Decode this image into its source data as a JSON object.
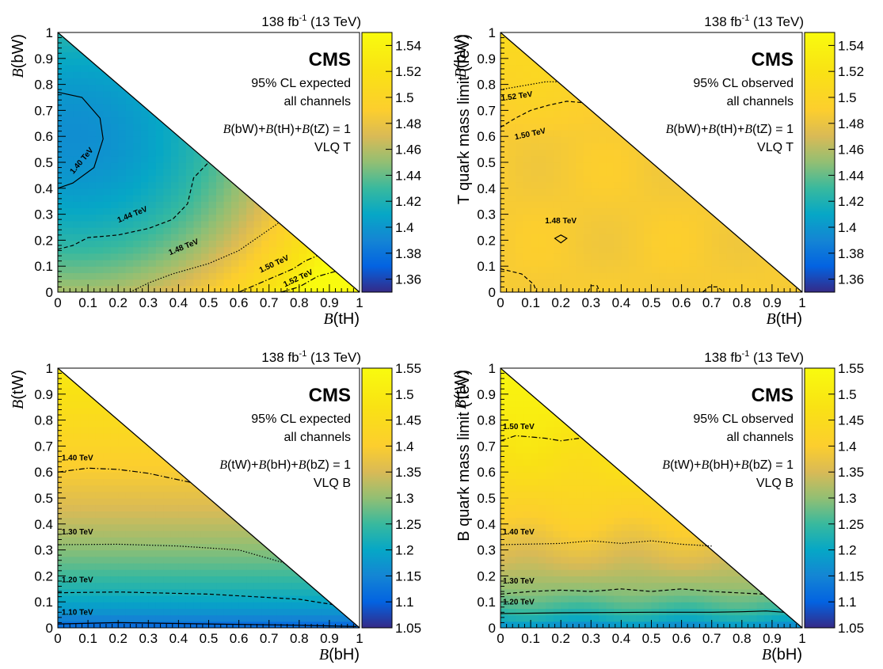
{
  "chart_data": [
    {
      "type": "heatmap",
      "id": "tl",
      "lumi": "138 fb",
      "lumi_sup": "-1",
      "energy": "(13 TeV)",
      "experiment": "CMS",
      "label_line1": "95% CL expected",
      "label_line2": "all channels",
      "constraint": "B(bW)+B(tH)+B(tZ) = 1",
      "model": "VLQ T",
      "xlabel": "B(tH)",
      "ylabel": "B(bW)",
      "zlabel": "T quark mass limit (TeV)",
      "xlim": [
        0,
        1
      ],
      "ylim": [
        0,
        1
      ],
      "zlim": [
        1.35,
        1.55
      ],
      "xticks": [
        "0",
        "0.1",
        "0.2",
        "0.3",
        "0.4",
        "0.5",
        "0.6",
        "0.7",
        "0.8",
        "0.9",
        "1"
      ],
      "yticks": [
        "0",
        "0.1",
        "0.2",
        "0.3",
        "0.4",
        "0.5",
        "0.6",
        "0.7",
        "0.8",
        "0.9",
        "1"
      ],
      "zticks": [
        "1.36",
        "1.38",
        "1.4",
        "1.42",
        "1.44",
        "1.46",
        "1.48",
        "1.5",
        "1.52",
        "1.54"
      ],
      "zvalues": [
        1.36,
        1.38,
        1.4,
        1.42,
        1.44,
        1.46,
        1.48,
        1.5,
        1.52,
        1.54
      ],
      "surface": {
        "center": [
          0.06,
          0.6
        ],
        "v0": 1.395,
        "k": 0.155
      },
      "contours": [
        {
          "label": "1.40 TeV",
          "style": "solid",
          "points": [
            [
              0,
              0.77
            ],
            [
              0.08,
              0.75
            ],
            [
              0.14,
              0.67
            ],
            [
              0.15,
              0.59
            ],
            [
              0.12,
              0.48
            ],
            [
              0.05,
              0.42
            ],
            [
              0,
              0.4
            ]
          ],
          "label_at": [
            0.085,
            0.5
          ],
          "label_angle": -50
        },
        {
          "label": "1.44 TeV",
          "style": "dashed",
          "points": [
            [
              0,
              0.165
            ],
            [
              0.05,
              0.18
            ],
            [
              0.1,
              0.21
            ],
            [
              0.15,
              0.215
            ],
            [
              0.2,
              0.22
            ],
            [
              0.3,
              0.245
            ],
            [
              0.38,
              0.28
            ],
            [
              0.43,
              0.34
            ],
            [
              0.45,
              0.44
            ],
            [
              0.5,
              0.5
            ]
          ],
          "label_at": [
            0.25,
            0.29
          ],
          "label_angle": -22
        },
        {
          "label": "1.48 TeV",
          "style": "dotted",
          "points": [
            [
              0.24,
              0
            ],
            [
              0.3,
              0.035
            ],
            [
              0.38,
              0.07
            ],
            [
              0.5,
              0.11
            ],
            [
              0.6,
              0.16
            ],
            [
              0.73,
              0.265
            ]
          ],
          "label_at": [
            0.42,
            0.165
          ],
          "label_angle": -22
        },
        {
          "label": "1.50 TeV",
          "style": "dashdot",
          "points": [
            [
              0.6,
              0
            ],
            [
              0.7,
              0.05
            ],
            [
              0.78,
              0.09
            ],
            [
              0.82,
              0.12
            ],
            [
              0.86,
              0.14
            ]
          ],
          "label_at": [
            0.72,
            0.1
          ],
          "label_angle": -25
        },
        {
          "label": "1.52 TeV",
          "style": "dashdot",
          "points": [
            [
              0.74,
              0
            ],
            [
              0.8,
              0.02
            ],
            [
              0.86,
              0.06
            ],
            [
              0.92,
              0.08
            ]
          ],
          "label_at": [
            0.8,
            0.045
          ],
          "label_angle": -25
        }
      ]
    },
    {
      "type": "heatmap",
      "id": "tr",
      "lumi": "138 fb",
      "lumi_sup": "-1",
      "energy": "(13 TeV)",
      "experiment": "CMS",
      "label_line1": "95% CL observed",
      "label_line2": "all channels",
      "constraint": "B(bW)+B(tH)+B(tZ) = 1",
      "model": "VLQ T",
      "xlabel": "B(tH)",
      "ylabel": "B(bW)",
      "zlabel": "T quark mass limit (TeV)",
      "xlim": [
        0,
        1
      ],
      "ylim": [
        0,
        1
      ],
      "zlim": [
        1.35,
        1.55
      ],
      "xticks": [
        "0",
        "0.1",
        "0.2",
        "0.3",
        "0.4",
        "0.5",
        "0.6",
        "0.7",
        "0.8",
        "0.9",
        "1"
      ],
      "yticks": [
        "0",
        "0.1",
        "0.2",
        "0.3",
        "0.4",
        "0.5",
        "0.6",
        "0.7",
        "0.8",
        "0.9",
        "1"
      ],
      "zticks": [
        "1.36",
        "1.38",
        "1.4",
        "1.42",
        "1.44",
        "1.46",
        "1.48",
        "1.5",
        "1.52",
        "1.54"
      ],
      "zvalues": [
        1.36,
        1.38,
        1.4,
        1.42,
        1.44,
        1.46,
        1.48,
        1.5,
        1.52,
        1.54
      ],
      "surface": {
        "base": 1.487,
        "slope": 0.055,
        "pivot": 0.6
      },
      "contours": [
        {
          "label": "1.52 TeV",
          "style": "dotted",
          "points": [
            [
              0,
              0.78
            ],
            [
              0.05,
              0.79
            ],
            [
              0.1,
              0.8
            ],
            [
              0.15,
              0.81
            ],
            [
              0.19,
              0.81
            ]
          ],
          "label_at": [
            0.055,
            0.745
          ],
          "label_angle": -8
        },
        {
          "label": "1.50 TeV",
          "style": "dashed",
          "points": [
            [
              0,
              0.635
            ],
            [
              0.05,
              0.67
            ],
            [
              0.1,
              0.7
            ],
            [
              0.16,
              0.72
            ],
            [
              0.22,
              0.735
            ],
            [
              0.27,
              0.73
            ]
          ],
          "label_at": [
            0.1,
            0.6
          ],
          "label_angle": -12
        },
        {
          "label": "1.48 TeV",
          "style": "solid",
          "closed": true,
          "points": [
            [
              0.2,
              0.22
            ],
            [
              0.22,
              0.207
            ],
            [
              0.2,
              0.19
            ],
            [
              0.18,
              0.207
            ]
          ],
          "label_at": [
            0.2,
            0.265
          ],
          "label_angle": 0
        },
        {
          "label": "",
          "style": "dashed",
          "points": [
            [
              0,
              0.09
            ],
            [
              0.07,
              0.07
            ],
            [
              0.11,
              0.03
            ],
            [
              0.12,
              0
            ]
          ]
        },
        {
          "label": "",
          "style": "dashed",
          "points": [
            [
              0.29,
              0
            ],
            [
              0.3,
              0.025
            ],
            [
              0.32,
              0.025
            ],
            [
              0.33,
              0
            ]
          ]
        },
        {
          "label": "",
          "style": "dashed",
          "points": [
            [
              0.67,
              0
            ],
            [
              0.69,
              0.02
            ],
            [
              0.72,
              0.02
            ],
            [
              0.74,
              0
            ]
          ]
        }
      ]
    },
    {
      "type": "heatmap",
      "id": "bl",
      "lumi": "138 fb",
      "lumi_sup": "-1",
      "energy": "(13 TeV)",
      "experiment": "CMS",
      "label_line1": "95% CL expected",
      "label_line2": "all channels",
      "constraint": "B(tW)+B(bH)+B(bZ) = 1",
      "model": "VLQ B",
      "xlabel": "B(bH)",
      "ylabel": "B(tW)",
      "zlabel": "B quark mass limit (TeV)",
      "xlim": [
        0,
        1
      ],
      "ylim": [
        0,
        1
      ],
      "zlim": [
        1.05,
        1.55
      ],
      "xticks": [
        "0",
        "0.1",
        "0.2",
        "0.3",
        "0.4",
        "0.5",
        "0.6",
        "0.7",
        "0.8",
        "0.9",
        "1"
      ],
      "yticks": [
        "0",
        "0.1",
        "0.2",
        "0.3",
        "0.4",
        "0.5",
        "0.6",
        "0.7",
        "0.8",
        "0.9",
        "1"
      ],
      "zticks": [
        "1.05",
        "1.1",
        "1.15",
        "1.2",
        "1.25",
        "1.3",
        "1.35",
        "1.4",
        "1.45",
        "1.5",
        "1.55"
      ],
      "zvalues": [
        1.05,
        1.1,
        1.15,
        1.2,
        1.25,
        1.3,
        1.35,
        1.4,
        1.45,
        1.5,
        1.55
      ],
      "surface": {
        "bottom": 1.08,
        "top": 1.495,
        "power": 0.55
      },
      "contours": [
        {
          "label": "1.40 TeV",
          "style": "dashdot",
          "points": [
            [
              0,
              0.6
            ],
            [
              0.1,
              0.615
            ],
            [
              0.2,
              0.61
            ],
            [
              0.3,
              0.595
            ],
            [
              0.44,
              0.56
            ]
          ],
          "label_at": [
            0.065,
            0.645
          ],
          "label_angle": 0
        },
        {
          "label": "1.30 TeV",
          "style": "dotted",
          "points": [
            [
              0,
              0.32
            ],
            [
              0.2,
              0.322
            ],
            [
              0.4,
              0.315
            ],
            [
              0.6,
              0.3
            ],
            [
              0.75,
              0.25
            ]
          ],
          "label_at": [
            0.065,
            0.36
          ],
          "label_angle": 0
        },
        {
          "label": "1.20 TeV",
          "style": "dashed",
          "points": [
            [
              0,
              0.135
            ],
            [
              0.2,
              0.138
            ],
            [
              0.5,
              0.13
            ],
            [
              0.8,
              0.11
            ],
            [
              0.91,
              0.09
            ]
          ],
          "label_at": [
            0.065,
            0.175
          ],
          "label_angle": 0
        },
        {
          "label": "1.10 TeV",
          "style": "solid",
          "points": [
            [
              0,
              0.015
            ],
            [
              0.2,
              0.02
            ],
            [
              0.5,
              0.015
            ],
            [
              0.8,
              0.01
            ],
            [
              0.99,
              0.005
            ]
          ],
          "label_at": [
            0.065,
            0.05
          ],
          "label_angle": 0
        }
      ]
    },
    {
      "type": "heatmap",
      "id": "br",
      "lumi": "138 fb",
      "lumi_sup": "-1",
      "energy": "(13 TeV)",
      "experiment": "CMS",
      "label_line1": "95% CL observed",
      "label_line2": "all channels",
      "constraint": "B(tW)+B(bH)+B(bZ) = 1",
      "model": "VLQ B",
      "xlabel": "B(bH)",
      "ylabel": "B(tW)",
      "zlabel": "B quark mass limit (TeV)",
      "xlim": [
        0,
        1
      ],
      "ylim": [
        0,
        1
      ],
      "zlim": [
        1.05,
        1.55
      ],
      "xticks": [
        "0",
        "0.1",
        "0.2",
        "0.3",
        "0.4",
        "0.5",
        "0.6",
        "0.7",
        "0.8",
        "0.9",
        "1"
      ],
      "yticks": [
        "0",
        "0.1",
        "0.2",
        "0.3",
        "0.4",
        "0.5",
        "0.6",
        "0.7",
        "0.8",
        "0.9",
        "1"
      ],
      "zticks": [
        "1.05",
        "1.1",
        "1.15",
        "1.2",
        "1.25",
        "1.3",
        "1.35",
        "1.4",
        "1.45",
        "1.5",
        "1.55"
      ],
      "zvalues": [
        1.05,
        1.1,
        1.15,
        1.2,
        1.25,
        1.3,
        1.35,
        1.4,
        1.45,
        1.5,
        1.55
      ],
      "surface": {
        "bottom": 1.12,
        "top": 1.54,
        "power": 0.45
      },
      "contours": [
        {
          "label": "1.50 TeV",
          "style": "dashdot",
          "points": [
            [
              0,
              0.72
            ],
            [
              0.05,
              0.74
            ],
            [
              0.1,
              0.735
            ],
            [
              0.15,
              0.73
            ],
            [
              0.2,
              0.72
            ],
            [
              0.26,
              0.73
            ]
          ],
          "label_at": [
            0.06,
            0.765
          ],
          "label_angle": 0
        },
        {
          "label": "1.40 TeV",
          "style": "dotted",
          "points": [
            [
              0,
              0.32
            ],
            [
              0.2,
              0.325
            ],
            [
              0.3,
              0.335
            ],
            [
              0.4,
              0.325
            ],
            [
              0.5,
              0.335
            ],
            [
              0.6,
              0.322
            ],
            [
              0.7,
              0.315
            ]
          ],
          "label_at": [
            0.06,
            0.36
          ],
          "label_angle": 0
        },
        {
          "label": "1.30 TeV",
          "style": "dashed",
          "points": [
            [
              0,
              0.13
            ],
            [
              0.1,
              0.14
            ],
            [
              0.2,
              0.145
            ],
            [
              0.3,
              0.14
            ],
            [
              0.4,
              0.15
            ],
            [
              0.5,
              0.14
            ],
            [
              0.6,
              0.15
            ],
            [
              0.7,
              0.14
            ],
            [
              0.87,
              0.13
            ]
          ],
          "label_at": [
            0.06,
            0.17
          ],
          "label_angle": 0
        },
        {
          "label": "1.20 TeV",
          "style": "solid",
          "points": [
            [
              0,
              0.055
            ],
            [
              0.2,
              0.058
            ],
            [
              0.5,
              0.06
            ],
            [
              0.7,
              0.06
            ],
            [
              0.8,
              0.062
            ],
            [
              0.88,
              0.065
            ],
            [
              0.94,
              0.06
            ]
          ],
          "label_at": [
            0.06,
            0.09
          ],
          "label_angle": 0
        }
      ]
    }
  ]
}
